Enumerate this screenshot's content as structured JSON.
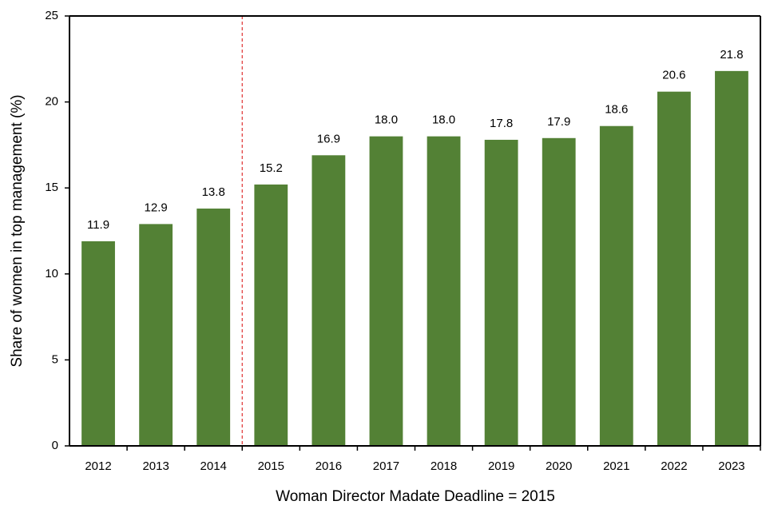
{
  "chart_data": {
    "type": "bar",
    "x_label": "Woman Director Madate Deadline = 2015",
    "y_label": "Share of women in top management (%)",
    "categories": [
      "2012",
      "2013",
      "2014",
      "2015",
      "2016",
      "2017",
      "2018",
      "2019",
      "2020",
      "2021",
      "2022",
      "2023"
    ],
    "values": [
      11.9,
      12.9,
      13.8,
      15.2,
      16.9,
      18.0,
      18.0,
      17.8,
      17.9,
      18.6,
      20.6,
      21.8
    ],
    "value_labels": [
      "11.9",
      "12.9",
      "13.8",
      "15.2",
      "16.9",
      "18.0",
      "18.0",
      "17.8",
      "17.9",
      "18.6",
      "20.6",
      "21.8"
    ],
    "color": "#538135",
    "ylim": [
      0,
      25
    ],
    "yticks": [
      0,
      5,
      10,
      15,
      20,
      25
    ],
    "grid": false
  }
}
